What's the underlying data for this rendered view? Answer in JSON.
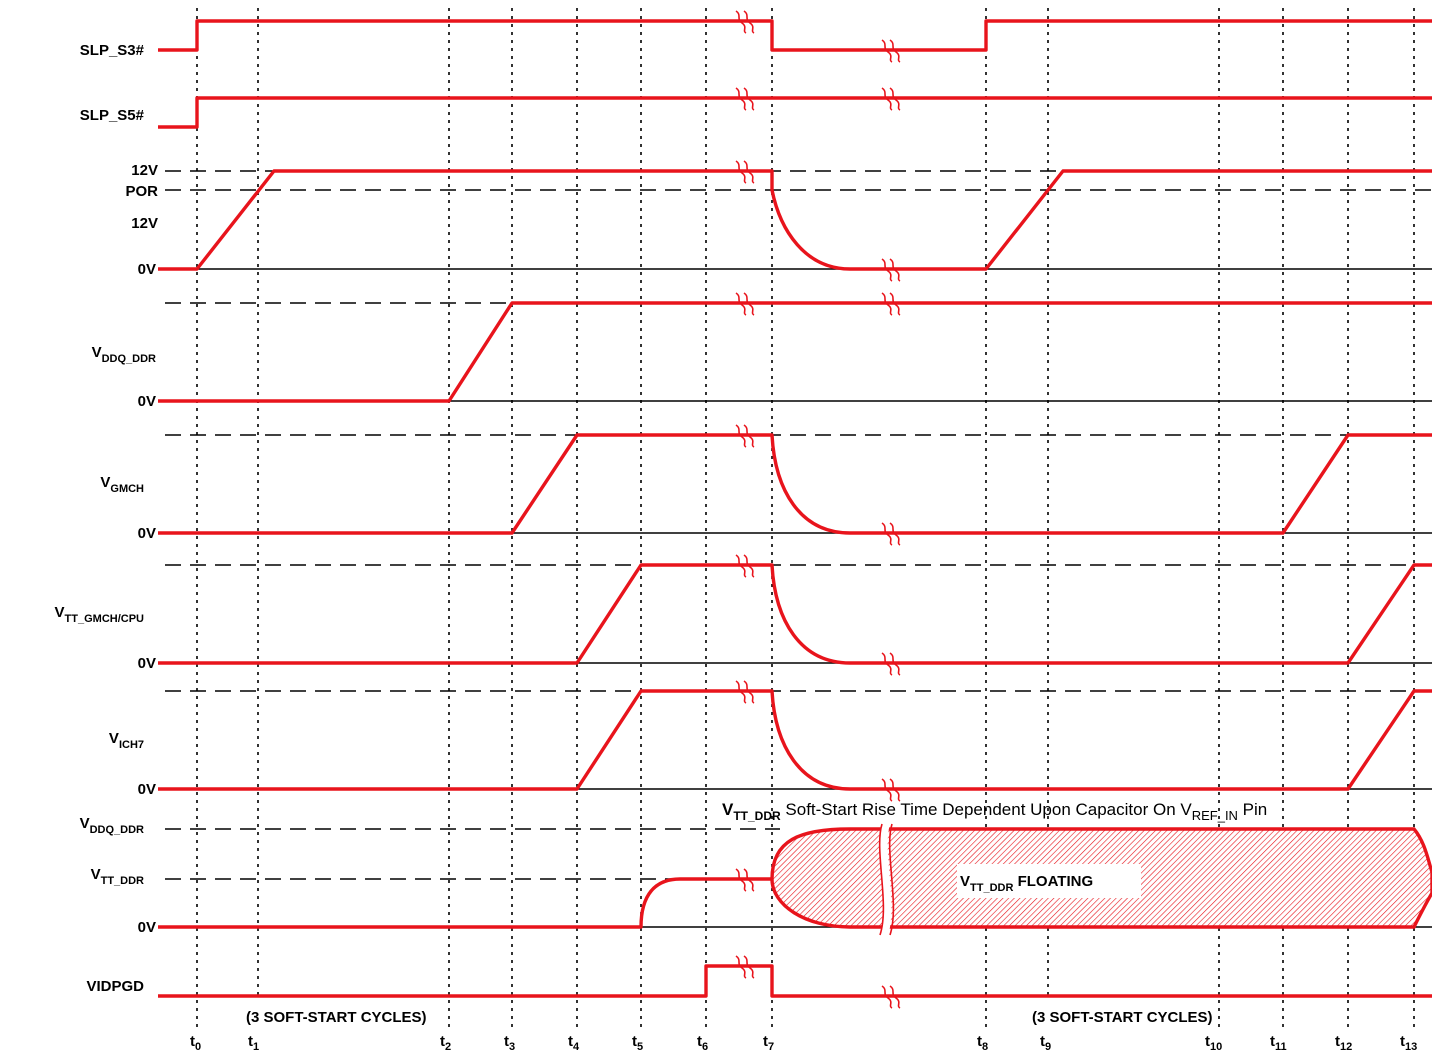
{
  "signals": {
    "slp_s3": "SLP_S3#",
    "slp_s5": "SLP_S5#",
    "v12_top": "12V",
    "por": "POR",
    "v12_mid": "12V",
    "zero_12v": "0V",
    "vddq_ddr": {
      "main": "V",
      "sub": "DDQ_DDR"
    },
    "zero_vddq": "0V",
    "vgmch": {
      "main": "V",
      "sub": "GMCH"
    },
    "zero_vgmch": "0V",
    "vtt_gmch_cpu": {
      "main": "V",
      "sub": "TT_GMCH/CPU"
    },
    "zero_vtt": "0V",
    "vich7": {
      "main": "V",
      "sub": "ICH7"
    },
    "zero_vich7": "0V",
    "vddq_ddr_ref": {
      "main": "V",
      "sub": "DDQ_DDR"
    },
    "vtt_ddr_ref": {
      "main": "V",
      "sub": "TT_DDR"
    },
    "zero_vtt_ddr": "0V",
    "vidpgd": "VIDPGD"
  },
  "annotations": {
    "soft_start_note": {
      "main": "V",
      "sub": "TT_DDR",
      "text": " Soft-Start Rise Time Dependent Upon Capacitor On V",
      "sub2": "REF_IN",
      "tail": " Pin"
    },
    "floating_label": {
      "main": "V",
      "sub": "TT_DDR",
      "text": " FLOATING"
    },
    "soft_start_cycles_1": "(3 SOFT-START CYCLES)",
    "soft_start_cycles_2": "(3 SOFT-START CYCLES)"
  },
  "time_markers": [
    {
      "base": "t",
      "sub": "0"
    },
    {
      "base": "t",
      "sub": "1"
    },
    {
      "base": "t",
      "sub": "2"
    },
    {
      "base": "t",
      "sub": "3"
    },
    {
      "base": "t",
      "sub": "4"
    },
    {
      "base": "t",
      "sub": "5"
    },
    {
      "base": "t",
      "sub": "6"
    },
    {
      "base": "t",
      "sub": "7"
    },
    {
      "base": "t",
      "sub": "8"
    },
    {
      "base": "t",
      "sub": "9"
    },
    {
      "base": "t",
      "sub": "10"
    },
    {
      "base": "t",
      "sub": "11"
    },
    {
      "base": "t",
      "sub": "12"
    },
    {
      "base": "t",
      "sub": "13"
    }
  ],
  "colors": {
    "signal": "#e8141c",
    "hatch": "#e8141c",
    "grid": "#000000"
  }
}
